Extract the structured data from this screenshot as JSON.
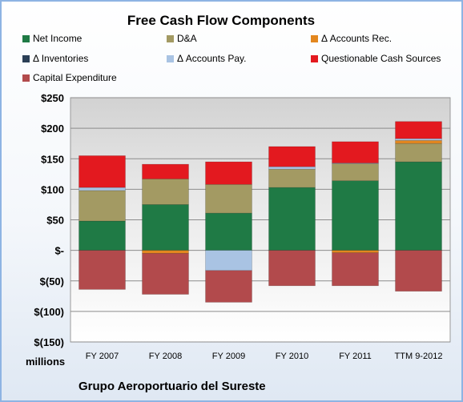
{
  "chart_data": {
    "type": "bar",
    "stacked": true,
    "title": "Free Cash Flow Components",
    "units_label": "millions",
    "company": "Grupo Aeroportuario del Sureste",
    "categories": [
      "FY 2007",
      "FY 2008",
      "FY 2009",
      "FY 2010",
      "FY 2011",
      "TTM 9-2012"
    ],
    "ylim": [
      -150,
      250
    ],
    "yticks": [
      250,
      200,
      150,
      100,
      50,
      0,
      -50,
      -100,
      -150
    ],
    "ytick_labels": [
      "$250",
      "$200",
      "$150",
      "$100",
      "$50",
      "$-",
      "$(50)",
      "$(100)",
      "$(150)"
    ],
    "grid": true,
    "legend_position": "top",
    "series": [
      {
        "name": "Net Income",
        "color": "#1f7a45",
        "values": [
          48,
          75,
          61,
          103,
          114,
          145
        ]
      },
      {
        "name": "D&A",
        "color": "#a39a63",
        "values": [
          50,
          42,
          47,
          30,
          28,
          30
        ]
      },
      {
        "name": "Δ Accounts Rec.",
        "color": "#e3871f",
        "values": [
          0,
          -5,
          0,
          0,
          -4,
          5
        ]
      },
      {
        "name": "Δ Inventories",
        "color": "#2b3f56",
        "values": [
          0,
          0,
          0,
          0,
          0,
          0
        ]
      },
      {
        "name": "Δ Accounts Pay.",
        "color": "#a9c3e3",
        "values": [
          5,
          0,
          -33,
          4,
          1,
          3
        ]
      },
      {
        "name": "Questionable Cash Sources",
        "color": "#e3191f",
        "values": [
          52,
          24,
          37,
          33,
          35,
          28
        ]
      },
      {
        "name": "Capital Expenditure",
        "color": "#b24a4c",
        "values": [
          -64,
          -67,
          -52,
          -58,
          -54,
          -67
        ]
      }
    ]
  }
}
